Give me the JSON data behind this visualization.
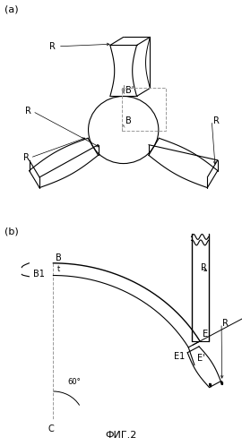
{
  "fig_label_a": "(a)",
  "fig_label_b": "(b)",
  "fig_caption": "ФИГ.2",
  "bg_color": "#ffffff",
  "line_color": "#000000",
  "dashed_color": "#999999",
  "label_fontsize": 7,
  "caption_fontsize": 8
}
